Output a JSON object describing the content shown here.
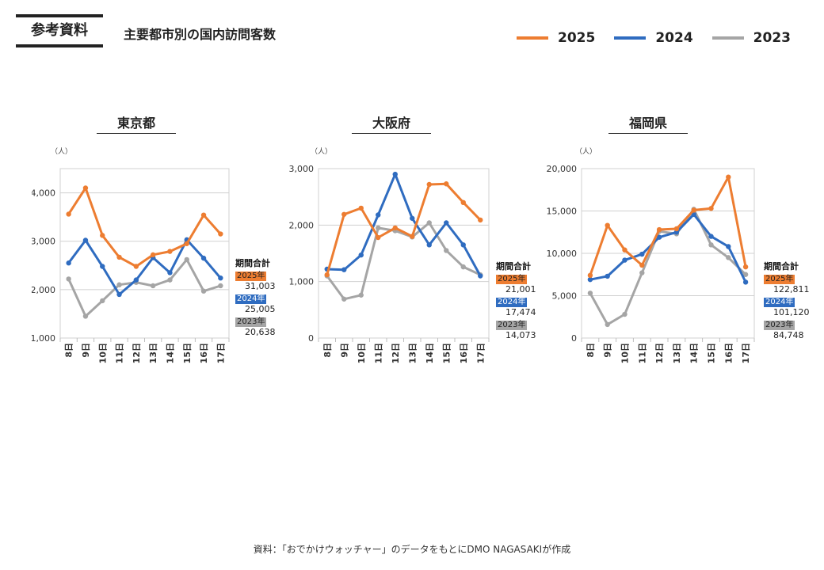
{
  "header": {
    "tag": "参考資料",
    "title": "主要都市別の国内訪問客数"
  },
  "legend": [
    {
      "label": "2025",
      "color": "#ED7D31"
    },
    {
      "label": "2024",
      "color": "#2F6CC0"
    },
    {
      "label": "2023",
      "color": "#A5A5A5"
    }
  ],
  "chart_data": [
    {
      "type": "line",
      "title": "東京都",
      "ylabel": "（人）",
      "categories": [
        "8日",
        "9日",
        "10日",
        "11日",
        "12日",
        "13日",
        "14日",
        "15日",
        "16日",
        "17日"
      ],
      "ylim": [
        1000,
        4500
      ],
      "yticks": [
        1000,
        2000,
        3000,
        4000
      ],
      "ytick_labels": [
        "1,000",
        "2,000",
        "3,000",
        "4,000"
      ],
      "series": [
        {
          "name": "2025",
          "color": "#ED7D31",
          "values": [
            3560,
            4100,
            3120,
            2670,
            2480,
            2720,
            2790,
            2950,
            3540,
            3150
          ]
        },
        {
          "name": "2024",
          "color": "#2F6CC0",
          "values": [
            2550,
            3020,
            2480,
            1900,
            2200,
            2660,
            2350,
            3030,
            2650,
            2240
          ]
        },
        {
          "name": "2023",
          "color": "#A5A5A5",
          "values": [
            2220,
            1450,
            1770,
            2100,
            2150,
            2080,
            2200,
            2620,
            1970,
            2080
          ]
        }
      ],
      "totals": {
        "header": "期間合計",
        "items": [
          {
            "year": "2025年",
            "value": "31,003",
            "color": "#ED7D31"
          },
          {
            "year": "2024年",
            "value": "25,005",
            "color": "#2F6CC0"
          },
          {
            "year": "2023年",
            "value": "20,638",
            "color": "#A5A5A5"
          }
        ]
      }
    },
    {
      "type": "line",
      "title": "大阪府",
      "ylabel": "（人）",
      "categories": [
        "8日",
        "9日",
        "10日",
        "11日",
        "12日",
        "13日",
        "14日",
        "15日",
        "16日",
        "17日"
      ],
      "ylim": [
        0,
        3000
      ],
      "yticks": [
        0,
        1000,
        2000,
        3000
      ],
      "ytick_labels": [
        "0",
        "1,000",
        "2,000",
        "3,000"
      ],
      "series": [
        {
          "name": "2025",
          "color": "#ED7D31",
          "values": [
            1120,
            2190,
            2300,
            1780,
            1950,
            1800,
            2720,
            2730,
            2400,
            2090
          ]
        },
        {
          "name": "2024",
          "color": "#2F6CC0",
          "values": [
            1220,
            1210,
            1470,
            2180,
            2900,
            2120,
            1650,
            2040,
            1650,
            1100
          ]
        },
        {
          "name": "2023",
          "color": "#A5A5A5",
          "values": [
            1100,
            690,
            760,
            1950,
            1900,
            1790,
            2040,
            1550,
            1260,
            1120
          ]
        }
      ],
      "totals": {
        "header": "期間合計",
        "items": [
          {
            "year": "2025年",
            "value": "21,001",
            "color": "#ED7D31"
          },
          {
            "year": "2024年",
            "value": "17,474",
            "color": "#2F6CC0"
          },
          {
            "year": "2023年",
            "value": "14,073",
            "color": "#A5A5A5"
          }
        ]
      }
    },
    {
      "type": "line",
      "title": "福岡県",
      "ylabel": "（人）",
      "categories": [
        "8日",
        "9日",
        "10日",
        "11日",
        "12日",
        "13日",
        "14日",
        "15日",
        "16日",
        "17日"
      ],
      "ylim": [
        0,
        20000
      ],
      "yticks": [
        0,
        5000,
        10000,
        15000,
        20000
      ],
      "ytick_labels": [
        "0",
        "5,000",
        "10,000",
        "15,000",
        "20,000"
      ],
      "series": [
        {
          "name": "2025",
          "color": "#ED7D31",
          "values": [
            7400,
            13300,
            10400,
            8600,
            12800,
            12900,
            15100,
            15300,
            19000,
            8400
          ]
        },
        {
          "name": "2024",
          "color": "#2F6CC0",
          "values": [
            6900,
            7300,
            9200,
            9900,
            11900,
            12500,
            14600,
            12000,
            10800,
            6600
          ]
        },
        {
          "name": "2023",
          "color": "#A5A5A5",
          "values": [
            5300,
            1600,
            2800,
            7700,
            12600,
            12300,
            15200,
            11000,
            9500,
            7500
          ]
        }
      ],
      "totals": {
        "header": "期間合計",
        "items": [
          {
            "year": "2025年",
            "value": "122,811",
            "color": "#ED7D31"
          },
          {
            "year": "2024年",
            "value": "101,120",
            "color": "#2F6CC0"
          },
          {
            "year": "2023年",
            "value": "84,748",
            "color": "#A5A5A5"
          }
        ]
      }
    }
  ],
  "footer": {
    "source": "資料：「おでかけウォッチャー」のデータをもとにDMO NAGASAKIが作成"
  }
}
